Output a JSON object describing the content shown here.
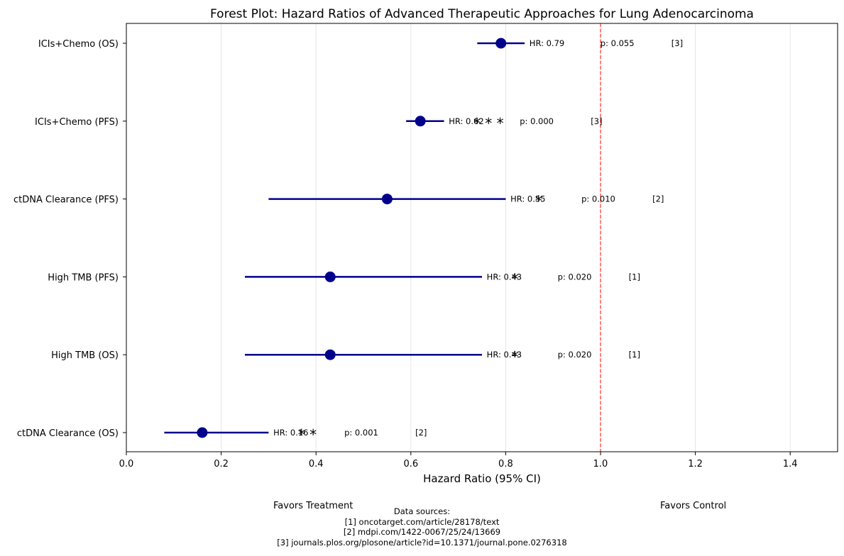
{
  "chart_data": {
    "type": "forest",
    "title": "Forest Plot: Hazard Ratios of Advanced Therapeutic Approaches for Lung Adenocarcinoma",
    "xlabel": "Hazard Ratio (95% CI)",
    "xlim": [
      0.0,
      1.5
    ],
    "xticks": [
      "0.0",
      "0.2",
      "0.4",
      "0.6",
      "0.8",
      "1.0",
      "1.2",
      "1.4"
    ],
    "xtick_values": [
      0.0,
      0.2,
      0.4,
      0.6,
      0.8,
      1.0,
      1.2,
      1.4
    ],
    "grid": "x",
    "reference_line": 1.0,
    "colors": {
      "point": "#00008b",
      "reference": "#ff0000",
      "grid": "#e6e6e6"
    },
    "rows": [
      {
        "label": "ICIs+Chemo (OS)",
        "hr": 0.79,
        "ci_low": 0.74,
        "ci_high": 0.84,
        "hr_text": "HR: 0.79",
        "p_text": "p: 0.055",
        "stars": "",
        "ref": "[3]"
      },
      {
        "label": "ICIs+Chemo (PFS)",
        "hr": 0.62,
        "ci_low": 0.59,
        "ci_high": 0.67,
        "hr_text": "HR: 0.62",
        "p_text": "p: 0.000",
        "stars": "* * *",
        "ref": "[3]"
      },
      {
        "label": "ctDNA Clearance (PFS)",
        "hr": 0.55,
        "ci_low": 0.3,
        "ci_high": 0.8,
        "hr_text": "HR: 0.55",
        "p_text": "p: 0.010",
        "stars": "*",
        "ref": "[2]"
      },
      {
        "label": "High TMB (PFS)",
        "hr": 0.43,
        "ci_low": 0.25,
        "ci_high": 0.75,
        "hr_text": "HR: 0.43",
        "p_text": "p: 0.020",
        "stars": "*",
        "ref": "[1]"
      },
      {
        "label": "High TMB (OS)",
        "hr": 0.43,
        "ci_low": 0.25,
        "ci_high": 0.75,
        "hr_text": "HR: 0.43",
        "p_text": "p: 0.020",
        "stars": "*",
        "ref": "[1]"
      },
      {
        "label": "ctDNA Clearance (OS)",
        "hr": 0.16,
        "ci_low": 0.08,
        "ci_high": 0.3,
        "hr_text": "HR: 0.16",
        "p_text": "p: 0.001",
        "stars": "* *",
        "ref": "[2]"
      }
    ]
  },
  "footer": {
    "favors_treatment": "Favors Treatment",
    "favors_control": "Favors Control",
    "sources_title": "Data sources:",
    "sources": [
      "[1] oncotarget.com/article/28178/text",
      "[2] mdpi.com/1422-0067/25/24/13669",
      "[3] journals.plos.org/plosone/article?id=10.1371/journal.pone.0276318"
    ]
  }
}
